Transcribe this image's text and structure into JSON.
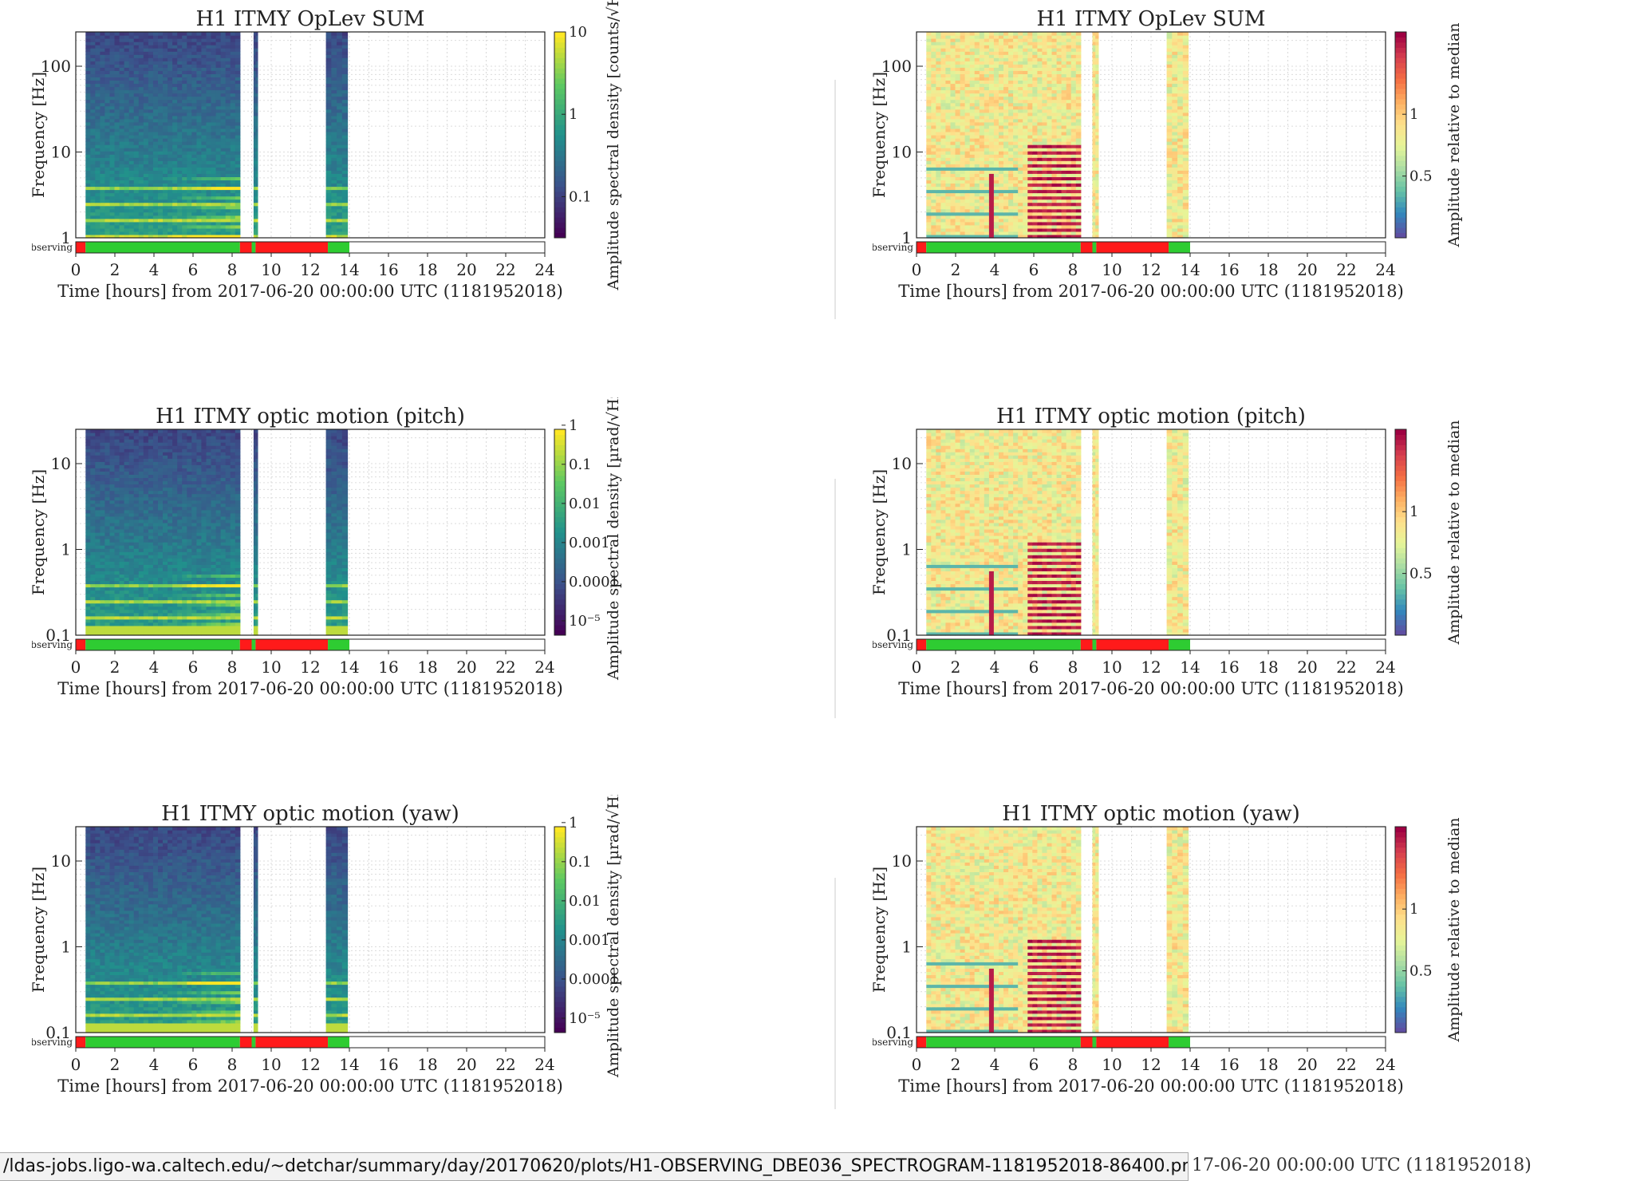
{
  "status_bar": {
    "url": "/ldas-jobs.ligo-wa.caltech.edu/~detchar/summary/day/20170620/plots/H1-OBSERVING_DBE036_SPECTROGRAM-1181952018-86400.png",
    "overlap_text": "17-06-20 00:00:00 UTC (1181952018)"
  },
  "colors": {
    "observing_on": "#2ecc32",
    "observing_off": "#ff1a1a",
    "viridis": [
      "#440154",
      "#3b528b",
      "#21918c",
      "#5ec962",
      "#fde725"
    ],
    "spectral": [
      "#5e4fa2",
      "#3288bd",
      "#66c2a5",
      "#abdda4",
      "#e6f598",
      "#fee08b",
      "#fdae61",
      "#f46d43",
      "#d53e4f",
      "#9e0142"
    ]
  },
  "chart_data": [
    {
      "type": "heatmap",
      "title": "H1 ITMY OpLev SUM",
      "xlabel": "Time [hours] from 2017-06-20 00:00:00 UTC (1181952018)",
      "ylabel": "Frequency [Hz]",
      "xlim": [
        0,
        24
      ],
      "xticks": [
        "0",
        "2",
        "4",
        "6",
        "8",
        "10",
        "12",
        "14",
        "16",
        "18",
        "20",
        "22",
        "24"
      ],
      "yscale": "log",
      "yticks": [
        "1",
        "10",
        "100"
      ],
      "colorbar": {
        "label": "Amplitude spectral density [counts/√Hz]",
        "colormap": "viridis",
        "ticks": [
          "0.1",
          "1",
          "10"
        ]
      },
      "data_segments_hours": [
        [
          0.5,
          8.4
        ],
        [
          9.1,
          9.3
        ],
        [
          12.8,
          13.9
        ]
      ],
      "state_label": "Observing",
      "observing_segments_hours": [
        [
          0.5,
          8.4
        ],
        [
          9.0,
          9.2
        ],
        [
          12.9,
          14.0
        ]
      ]
    },
    {
      "type": "heatmap",
      "title": "H1 ITMY OpLev SUM",
      "xlabel": "Time [hours] from 2017-06-20 00:00:00 UTC (1181952018)",
      "ylabel": "Frequency [Hz]",
      "xlim": [
        0,
        24
      ],
      "xticks": [
        "0",
        "2",
        "4",
        "6",
        "8",
        "10",
        "12",
        "14",
        "16",
        "18",
        "20",
        "22",
        "24"
      ],
      "yscale": "log",
      "yticks": [
        "1",
        "10",
        "100"
      ],
      "colorbar": {
        "label": "Amplitude relative to median",
        "colormap": "spectral",
        "ticks": [
          "0.5",
          "1"
        ]
      },
      "data_segments_hours": [
        [
          0.5,
          8.4
        ],
        [
          9.0,
          9.3
        ],
        [
          12.8,
          13.9
        ]
      ],
      "state_label": "Observing",
      "observing_segments_hours": [
        [
          0.5,
          8.4
        ],
        [
          9.0,
          9.2
        ],
        [
          12.9,
          14.0
        ]
      ]
    },
    {
      "type": "heatmap",
      "title": "H1 ITMY optic motion (pitch)",
      "xlabel": "Time [hours] from 2017-06-20 00:00:00 UTC (1181952018)",
      "ylabel": "Frequency [Hz]",
      "xlim": [
        0,
        24
      ],
      "xticks": [
        "0",
        "2",
        "4",
        "6",
        "8",
        "10",
        "12",
        "14",
        "16",
        "18",
        "20",
        "22",
        "24"
      ],
      "yscale": "log",
      "yticks": [
        "0.1",
        "1",
        "10"
      ],
      "colorbar": {
        "label": "Amplitude spectral density [µrad/√Hz]",
        "colormap": "viridis",
        "ticks": [
          "10⁻⁵",
          "0.0001",
          "0.001",
          "0.01",
          "0.1",
          "1"
        ]
      },
      "data_segments_hours": [
        [
          0.5,
          8.4
        ],
        [
          9.1,
          9.3
        ],
        [
          12.8,
          13.9
        ]
      ],
      "state_label": "Observing",
      "observing_segments_hours": [
        [
          0.5,
          8.4
        ],
        [
          9.0,
          9.2
        ],
        [
          12.9,
          14.0
        ]
      ]
    },
    {
      "type": "heatmap",
      "title": "H1 ITMY optic motion (pitch)",
      "xlabel": "Time [hours] from 2017-06-20 00:00:00 UTC (1181952018)",
      "ylabel": "Frequency [Hz]",
      "xlim": [
        0,
        24
      ],
      "xticks": [
        "0",
        "2",
        "4",
        "6",
        "8",
        "10",
        "12",
        "14",
        "16",
        "18",
        "20",
        "22",
        "24"
      ],
      "yscale": "log",
      "yticks": [
        "0.1",
        "1",
        "10"
      ],
      "colorbar": {
        "label": "Amplitude relative to median",
        "colormap": "spectral",
        "ticks": [
          "0.5",
          "1"
        ]
      },
      "data_segments_hours": [
        [
          0.5,
          8.4
        ],
        [
          9.0,
          9.3
        ],
        [
          12.8,
          13.9
        ]
      ],
      "state_label": "Observing",
      "observing_segments_hours": [
        [
          0.5,
          8.4
        ],
        [
          9.0,
          9.2
        ],
        [
          12.9,
          14.0
        ]
      ]
    },
    {
      "type": "heatmap",
      "title": "H1 ITMY optic motion (yaw)",
      "xlabel": "Time [hours] from 2017-06-20 00:00:00 UTC (1181952018)",
      "ylabel": "Frequency [Hz]",
      "xlim": [
        0,
        24
      ],
      "xticks": [
        "0",
        "2",
        "4",
        "6",
        "8",
        "10",
        "12",
        "14",
        "16",
        "18",
        "20",
        "22",
        "24"
      ],
      "yscale": "log",
      "yticks": [
        "0.1",
        "1",
        "10"
      ],
      "colorbar": {
        "label": "Amplitude spectral density [µrad/√Hz]",
        "colormap": "viridis",
        "ticks": [
          "10⁻⁵",
          "0.0001",
          "0.001",
          "0.01",
          "0.1",
          "1"
        ]
      },
      "data_segments_hours": [
        [
          0.5,
          8.4
        ],
        [
          9.1,
          9.3
        ],
        [
          12.8,
          13.9
        ]
      ],
      "state_label": "Observing",
      "observing_segments_hours": [
        [
          0.5,
          8.4
        ],
        [
          9.0,
          9.2
        ],
        [
          12.9,
          14.0
        ]
      ]
    },
    {
      "type": "heatmap",
      "title": "H1 ITMY optic motion (yaw)",
      "xlabel": "Time [hours] from 2017-06-20 00:00:00 UTC (1181952018)",
      "ylabel": "Frequency [Hz]",
      "xlim": [
        0,
        24
      ],
      "xticks": [
        "0",
        "2",
        "4",
        "6",
        "8",
        "10",
        "12",
        "14",
        "16",
        "18",
        "20",
        "22",
        "24"
      ],
      "yscale": "log",
      "yticks": [
        "0.1",
        "1",
        "10"
      ],
      "colorbar": {
        "label": "Amplitude relative to median",
        "colormap": "spectral",
        "ticks": [
          "0.5",
          "1"
        ]
      },
      "data_segments_hours": [
        [
          0.5,
          8.4
        ],
        [
          9.0,
          9.3
        ],
        [
          12.8,
          13.9
        ]
      ],
      "state_label": "Observing",
      "observing_segments_hours": [
        [
          0.5,
          8.4
        ],
        [
          9.0,
          9.2
        ],
        [
          12.9,
          14.0
        ]
      ]
    }
  ]
}
